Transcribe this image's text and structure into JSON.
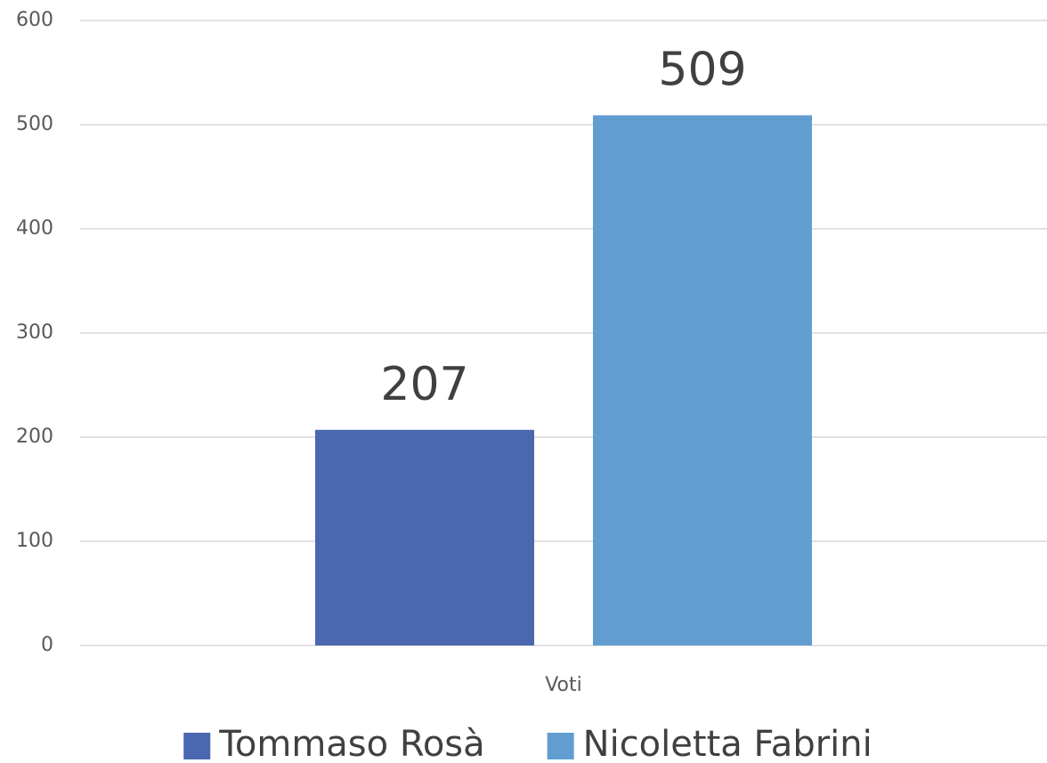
{
  "chart_data": {
    "type": "bar",
    "categories": [
      "Voti"
    ],
    "series": [
      {
        "name": "Tommaso Rosà",
        "color": "#4a67b0",
        "values": [
          207
        ]
      },
      {
        "name": "Nicoletta Fabrini",
        "color": "#619dd1",
        "values": [
          509
        ]
      }
    ],
    "ylim": [
      0,
      600
    ],
    "yticks": [
      0,
      100,
      200,
      300,
      400,
      500,
      600
    ],
    "grid": true,
    "legend": "bottom",
    "data_labels": true
  }
}
